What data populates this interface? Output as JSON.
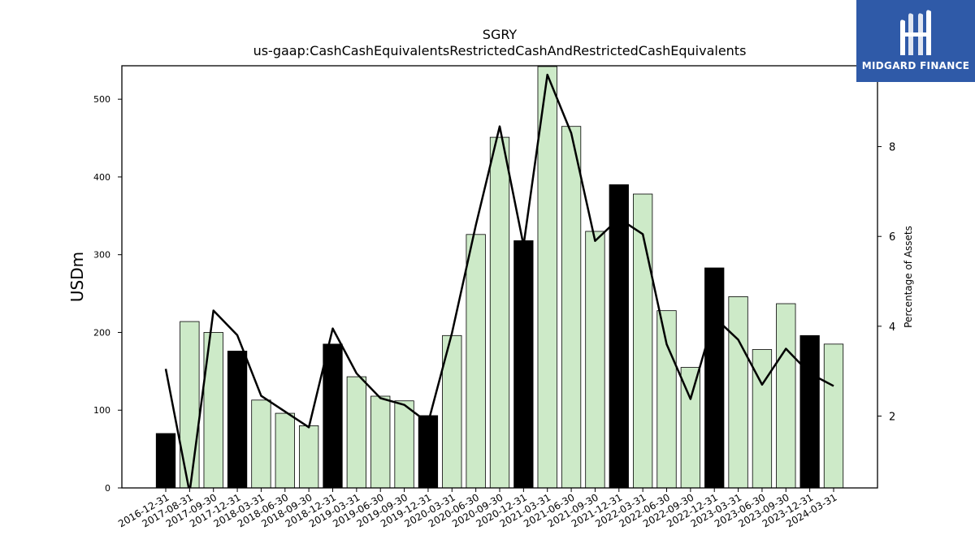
{
  "chart_data": {
    "type": "bar",
    "title": "SGRY",
    "subtitle": "us-gaap:CashCashEquivalentsRestrictedCashAndRestrictedCashEquivalents",
    "ylabel": "USDm",
    "y2label": "Percentage of Assets",
    "ylim": [
      0,
      543
    ],
    "y2lim": [
      0.4,
      9.8
    ],
    "yticks": [
      0,
      100,
      200,
      300,
      400,
      500
    ],
    "y2ticks": [
      2,
      4,
      6,
      8
    ],
    "categories": [
      "2016-12-31",
      "2017-08-31",
      "2017-09-30",
      "2017-12-31",
      "2018-03-31",
      "2018-06-30",
      "2018-09-30",
      "2018-12-31",
      "2019-03-31",
      "2019-06-30",
      "2019-09-30",
      "2019-12-31",
      "2020-03-31",
      "2020-06-30",
      "2020-09-30",
      "2020-12-31",
      "2021-03-31",
      "2021-06-30",
      "2021-09-30",
      "2021-12-31",
      "2022-03-31",
      "2022-06-30",
      "2022-09-30",
      "2022-12-31",
      "2023-03-31",
      "2023-06-30",
      "2023-09-30",
      "2023-12-31",
      "2024-03-31"
    ],
    "series": [
      {
        "type": "bar",
        "values": [
          70,
          214,
          200,
          176,
          113,
          96,
          80,
          185,
          143,
          118,
          112,
          93,
          196,
          326,
          451,
          318,
          542,
          465,
          330,
          390,
          378,
          228,
          155,
          283,
          246,
          178,
          237,
          196,
          185
        ],
        "highlight": [
          true,
          false,
          false,
          true,
          false,
          false,
          false,
          true,
          false,
          false,
          false,
          true,
          false,
          false,
          false,
          true,
          false,
          false,
          false,
          true,
          false,
          false,
          false,
          true,
          false,
          false,
          false,
          true,
          false
        ],
        "color": "#cdeac8",
        "highlight_color": "#000000"
      },
      {
        "type": "line",
        "axis": "right",
        "values": [
          3.05,
          0.3,
          4.35,
          3.8,
          2.45,
          2.1,
          1.75,
          3.95,
          2.95,
          2.4,
          2.25,
          1.85,
          3.85,
          6.25,
          8.45,
          5.8,
          9.6,
          8.3,
          5.9,
          6.4,
          6.05,
          3.6,
          2.38,
          4.2,
          3.7,
          2.7,
          3.5,
          2.95,
          2.67
        ],
        "color": "#000000"
      }
    ],
    "grid": false
  },
  "logo": {
    "text": "MIDGARD FINANCE",
    "icon": "midgard-m-logo-icon",
    "bg_color": "#2f5aa8"
  }
}
